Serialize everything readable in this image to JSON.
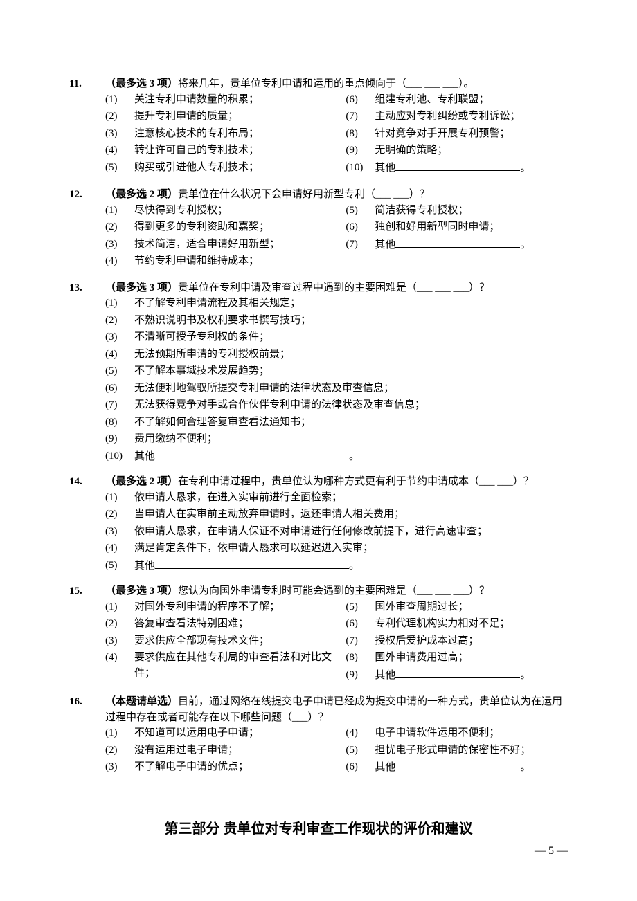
{
  "page": {
    "background_color": "#ffffff",
    "text_color": "#000000",
    "font_family": "SimSun",
    "body_fontsize": 15,
    "section_fontsize": 20
  },
  "questions": [
    {
      "num": "11.",
      "prefix_bold": "（最多选 3 项）",
      "stem_rest": "将来几年，贵单位专利申请和运用的重点倾向于（___  ___  ___）。",
      "layout": "2col",
      "left": [
        {
          "n": "(1)",
          "t": "关注专利申请数量的积累；"
        },
        {
          "n": "(2)",
          "t": "提升专利申请的质量；"
        },
        {
          "n": "(3)",
          "t": "注意核心技术的专利布局；"
        },
        {
          "n": "(4)",
          "t": "转让许可自己的专利技术；"
        },
        {
          "n": "(5)",
          "t": "购买或引进他人专利技术；"
        }
      ],
      "right": [
        {
          "n": "(6)",
          "t": "组建专利池、专利联盟；"
        },
        {
          "n": "(7)",
          "t": "主动应对专利纠纷或专利诉讼；"
        },
        {
          "n": "(8)",
          "t": "针对竞争对手开展专利预警；"
        },
        {
          "n": "(9)",
          "t": "无明确的策略；"
        },
        {
          "n": "(10)",
          "t": "其他",
          "blank": "long",
          "suffix": "。"
        }
      ]
    },
    {
      "num": "12.",
      "prefix_bold": "（最多选 2 项）",
      "stem_rest": "贵单位在什么状况下会申请好用新型专利（___  ___）？",
      "layout": "2col",
      "left": [
        {
          "n": "(1)",
          "t": "尽快得到专利授权；"
        },
        {
          "n": "(2)",
          "t": "得到更多的专利资助和嘉奖；"
        },
        {
          "n": "(3)",
          "t": "技术简洁，适合申请好用新型；"
        },
        {
          "n": "(4)",
          "t": "节约专利申请和维持成本；"
        }
      ],
      "right": [
        {
          "n": "(5)",
          "t": "简洁获得专利授权；"
        },
        {
          "n": "(6)",
          "t": "独创和好用新型同时申请；"
        },
        {
          "n": "(7)",
          "t": "其他",
          "blank": "long",
          "suffix": "。"
        }
      ]
    },
    {
      "num": "13.",
      "prefix_bold": "（最多选 3 项）",
      "stem_rest": "贵单位在专利申请及审查过程中遇到的主要困难是（___  ___  ___）？",
      "layout": "1col",
      "left": [
        {
          "n": "(1)",
          "t": "不了解专利申请流程及其相关规定；"
        },
        {
          "n": "(2)",
          "t": "不熟识说明书及权利要求书撰写技巧；"
        },
        {
          "n": "(3)",
          "t": "不清晰可授予专利权的条件；"
        },
        {
          "n": "(4)",
          "t": "无法预期所申请的专利授权前景；"
        },
        {
          "n": "(5)",
          "t": "不了解本事域技术发展趋势；"
        },
        {
          "n": "(6)",
          "t": "无法便利地驾驭所提交专利申请的法律状态及审查信息；"
        },
        {
          "n": "(7)",
          "t": "无法获得竞争对手或合作伙伴专利申请的法律状态及审查信息；"
        },
        {
          "n": "(8)",
          "t": "不了解如何合理答复审查看法通知书；"
        },
        {
          "n": "(9)",
          "t": "费用缴纳不便利；"
        },
        {
          "n": "(10)",
          "t": "其他",
          "blank": "xlong",
          "suffix": "。"
        }
      ]
    },
    {
      "num": "14.",
      "prefix_bold": "（最多选 2 项）",
      "stem_rest": "在专利申请过程中，贵单位认为哪种方式更有利于节约申请成本（___  ___）？",
      "layout": "1col",
      "left": [
        {
          "n": "(1)",
          "t": "依申请人恳求，在进入实审前进行全面检索；"
        },
        {
          "n": "(2)",
          "t": "当申请人在实审前主动放弃申请时，返还申请人相关费用；"
        },
        {
          "n": "(3)",
          "t": "依申请人恳求，在申请人保证不对申请进行任何修改前提下，进行高速审查；"
        },
        {
          "n": "(4)",
          "t": "满足肯定条件下，依申请人恳求可以延迟进入实审；"
        },
        {
          "n": "(5)",
          "t": "其他",
          "blank": "xlong",
          "suffix": "。"
        }
      ]
    },
    {
      "num": "15.",
      "prefix_bold": "（最多选 3 项）",
      "stem_rest": "您认为向国外申请专利时可能会遇到的主要困难是（___  ___  ___）？",
      "layout": "2col",
      "left": [
        {
          "n": "(1)",
          "t": "对国外专利申请的程序不了解；"
        },
        {
          "n": "(2)",
          "t": "答复审查看法特别困难；"
        },
        {
          "n": "(3)",
          "t": "要求供应全部现有技术文件；"
        },
        {
          "n": "(4)",
          "t": "要求供应在其他专利局的审查看法和对比文件；",
          "wrap": true
        }
      ],
      "right": [
        {
          "n": "(5)",
          "t": "国外审查周期过长；"
        },
        {
          "n": "(6)",
          "t": "专利代理机构实力相对不足；"
        },
        {
          "n": "(7)",
          "t": "授权后爱护成本过高；"
        },
        {
          "n": "(8)",
          "t": "国外申请费用过高；"
        },
        {
          "n": "(9)",
          "t": "其他",
          "blank": "long",
          "suffix": "。"
        }
      ]
    },
    {
      "num": "16.",
      "prefix_bold": "（本题请单选）",
      "stem_rest": "目前，通过网络在线提交电子申请已经成为提交申请的一种方式，贵单位认为在运用过程中存在或者可能存在以下哪些问题（___）？",
      "layout": "2col",
      "left": [
        {
          "n": "(1)",
          "t": "不知道可以运用电子申请；"
        },
        {
          "n": "(2)",
          "t": "没有运用过电子申请；"
        },
        {
          "n": "(3)",
          "t": "不了解电子申请的优点；"
        }
      ],
      "right": [
        {
          "n": "(4)",
          "t": "电子申请软件运用不便利；"
        },
        {
          "n": "(5)",
          "t": "担忧电子形式申请的保密性不好；"
        },
        {
          "n": "(6)",
          "t": "其他",
          "blank": "long",
          "suffix": "。"
        }
      ]
    }
  ],
  "section_title": "第三部分  贵单位对专利审查工作现状的评价和建议",
  "page_number": "— 5 —"
}
